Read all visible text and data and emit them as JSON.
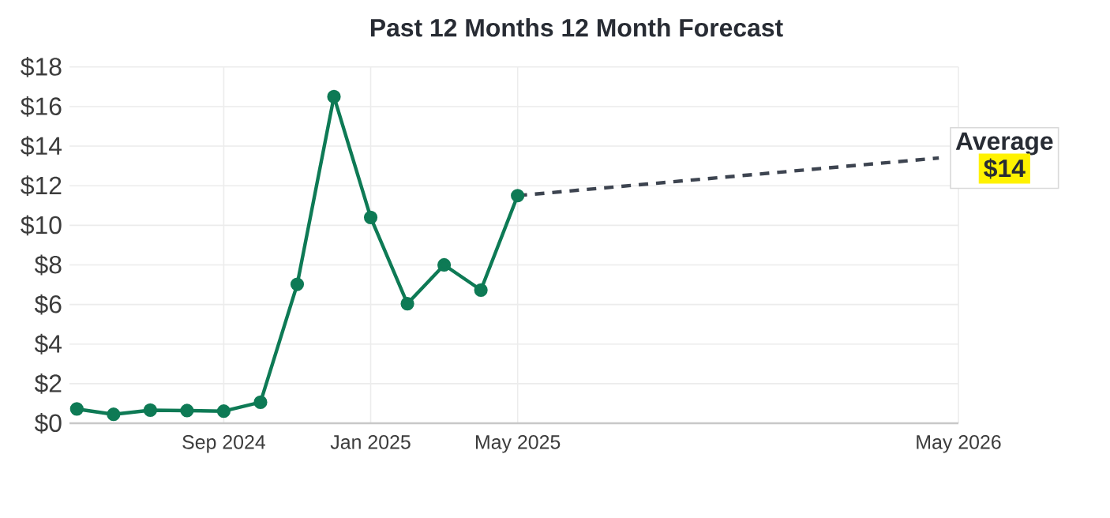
{
  "chart_data": {
    "type": "line",
    "title": "Past 12 Months  12 Month Forecast",
    "series": [
      {
        "color": "#0e7a55",
        "x": [
          "2024-05",
          "2024-06",
          "2024-07",
          "2024-08",
          "2024-09",
          "2024-10",
          "2024-11",
          "2024-12",
          "2025-01",
          "2025-02",
          "2025-03",
          "2025-04",
          "2025-05"
        ],
        "values": [
          0.72,
          0.45,
          0.66,
          0.64,
          0.61,
          1.06,
          7.02,
          16.5,
          10.4,
          6.04,
          8.0,
          6.73,
          11.5
        ]
      },
      {
        "color": "#3d4450",
        "x": [
          "2025-05",
          "2026-04-15"
        ],
        "values": [
          11.5,
          13.4
        ],
        "marker": "none",
        "line_style": "dashed"
      }
    ],
    "xlim": [
      "2024-04-25",
      "2026-05"
    ],
    "xticks": [
      {
        "value": "2024-09",
        "label": "Sep 2024"
      },
      {
        "value": "2025-01",
        "label": "Jan 2025"
      },
      {
        "value": "2025-05",
        "label": "May 2025"
      },
      {
        "value": "2026-05",
        "label": "May 2026"
      }
    ],
    "ylim": [
      0,
      18
    ],
    "yticks": [
      {
        "value": 0,
        "label": "$0"
      },
      {
        "value": 2,
        "label": "$2"
      },
      {
        "value": 4,
        "label": "$4"
      },
      {
        "value": 6,
        "label": "$6"
      },
      {
        "value": 8,
        "label": "$8"
      },
      {
        "value": 10,
        "label": "$10"
      },
      {
        "value": 12,
        "label": "$12"
      },
      {
        "value": 14,
        "label": "$14"
      },
      {
        "value": 16,
        "label": "$16"
      },
      {
        "value": 18,
        "label": "$18"
      }
    ],
    "grid": true,
    "marker": "circle",
    "line_style": "solid",
    "annotations": [
      "Average",
      "$14"
    ]
  }
}
